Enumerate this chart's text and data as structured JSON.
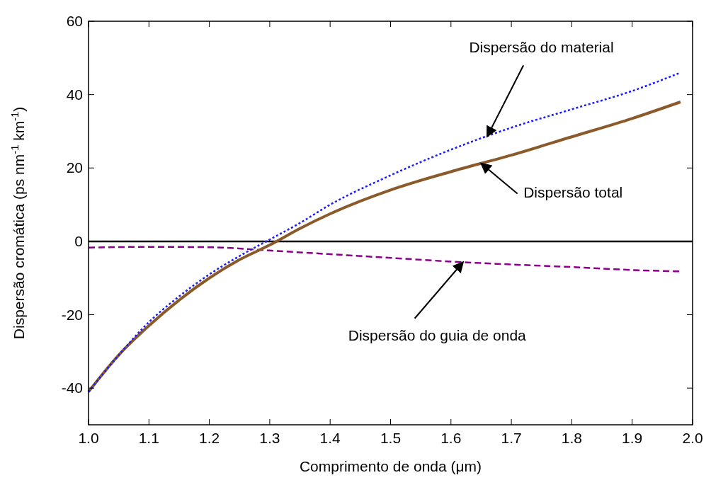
{
  "chart_data": {
    "type": "line",
    "xlabel": "Comprimento de onda (μm)",
    "ylabel": "Dispersão cromática (ps nm$^{-1}$ km$^{-1}$)",
    "xlim": [
      1.0,
      2.0
    ],
    "ylim": [
      -50,
      60
    ],
    "xticks": [
      {
        "value": 1.0,
        "label": "1.0"
      },
      {
        "value": 1.1,
        "label": "1.1"
      },
      {
        "value": 1.2,
        "label": "1.2"
      },
      {
        "value": 1.3,
        "label": "1.3"
      },
      {
        "value": 1.4,
        "label": "1.4"
      },
      {
        "value": 1.5,
        "label": "1.5"
      },
      {
        "value": 1.6,
        "label": "1.6"
      },
      {
        "value": 1.7,
        "label": "1.7"
      },
      {
        "value": 1.8,
        "label": "1.8"
      },
      {
        "value": 1.9,
        "label": "1.9"
      },
      {
        "value": 2.0,
        "label": "2.0"
      }
    ],
    "yticks": [
      -40,
      -20,
      0,
      20,
      40,
      60
    ],
    "grid": false,
    "ref_lines": [
      {
        "axis": "y",
        "value": 0,
        "color": "#000000",
        "line_style": "solid"
      }
    ],
    "series": [
      {
        "name": "Dispersão do material",
        "color": "#1a1aff",
        "line_style": "dotted",
        "x": [
          1.0,
          1.05,
          1.1,
          1.15,
          1.2,
          1.25,
          1.3,
          1.35,
          1.4,
          1.5,
          1.6,
          1.7,
          1.8,
          1.9,
          1.98
        ],
        "values": [
          -41,
          -31,
          -22,
          -15,
          -9,
          -4,
          0.5,
          5,
          10,
          18,
          25,
          31,
          36,
          41,
          46
        ]
      },
      {
        "name": "Dispersão total",
        "color": "#8b5a2b",
        "line_style": "solid",
        "x": [
          1.0,
          1.05,
          1.1,
          1.15,
          1.2,
          1.25,
          1.3,
          1.35,
          1.4,
          1.5,
          1.6,
          1.7,
          1.8,
          1.9,
          1.98
        ],
        "values": [
          -41,
          -31,
          -23,
          -16,
          -10,
          -5,
          -1,
          3.5,
          7.5,
          14,
          19,
          23.5,
          28.5,
          33.5,
          38
        ]
      },
      {
        "name": "Dispersão do guia de onda",
        "color": "#8b008b",
        "line_style": "dashed",
        "x": [
          1.0,
          1.1,
          1.2,
          1.3,
          1.4,
          1.5,
          1.6,
          1.7,
          1.8,
          1.9,
          1.98
        ],
        "values": [
          -1.7,
          -1.5,
          -1.6,
          -2.5,
          -3.5,
          -4.5,
          -5.5,
          -6.3,
          -7,
          -7.8,
          -8.2
        ]
      }
    ]
  }
}
